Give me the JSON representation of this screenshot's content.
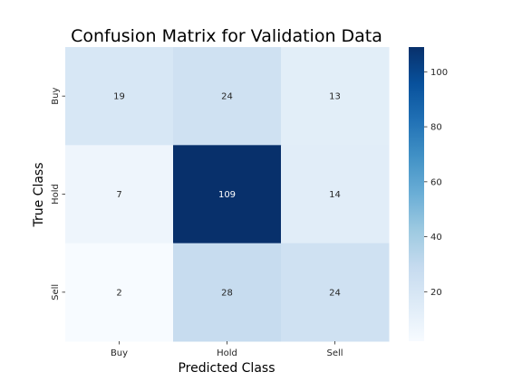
{
  "chart_data": {
    "type": "heatmap",
    "title": "Confusion Matrix for Validation Data",
    "xlabel": "Predicted Class",
    "ylabel": "True Class",
    "x_categories": [
      "Buy",
      "Hold",
      "Sell"
    ],
    "y_categories": [
      "Buy",
      "Hold",
      "Sell"
    ],
    "values": [
      [
        19,
        24,
        13
      ],
      [
        7,
        109,
        14
      ],
      [
        2,
        28,
        24
      ]
    ],
    "colormap": "Blues",
    "colorbar": {
      "ticks": [
        20,
        40,
        60,
        80,
        100
      ],
      "range": [
        2,
        109
      ]
    },
    "colors": {
      "low": "#f7fbff",
      "high": "#08306b",
      "text_dark": "#262626",
      "text_light": "#ffffff"
    }
  }
}
